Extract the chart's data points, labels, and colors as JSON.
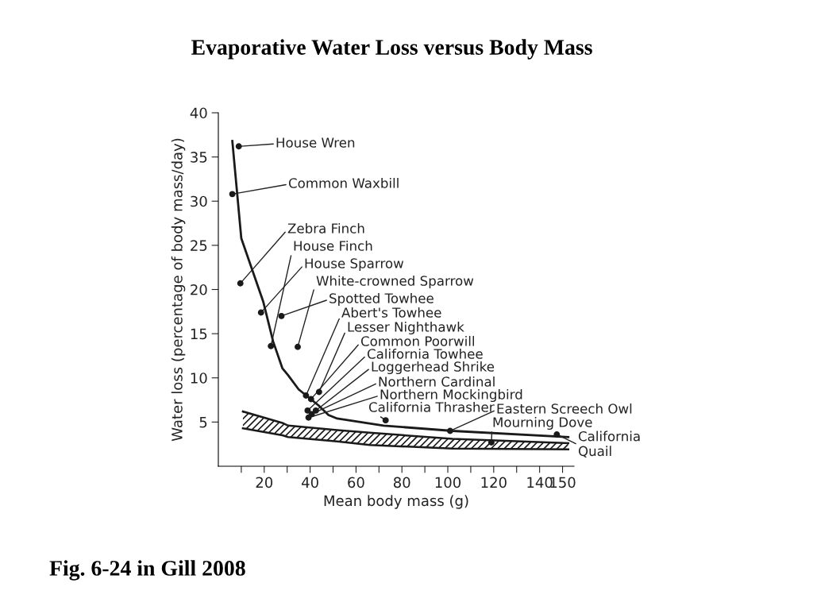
{
  "chart_data": {
    "type": "scatter",
    "title": "Evaporative Water Loss versus Body Mass",
    "xlabel": "Mean body mass (g)",
    "ylabel": "Water loss (percentage of body mass/day)",
    "xlim": [
      0,
      155
    ],
    "ylim": [
      0,
      40
    ],
    "stacked": true,
    "xticks": [
      {
        "value": 10,
        "label": null
      },
      20,
      {
        "value": 30,
        "label": null
      },
      40,
      {
        "value": 50,
        "label": null
      },
      60,
      {
        "value": 70,
        "label": null
      },
      80,
      {
        "value": 90,
        "label": null
      },
      100,
      {
        "value": 110,
        "label": null
      },
      120,
      {
        "value": 130,
        "label": null
      },
      140,
      150
    ],
    "yticks": [
      5,
      10,
      15,
      20,
      25,
      30,
      35,
      40
    ],
    "grid": false,
    "series": [
      {
        "color": "#1a1a1a",
        "marker": "circle",
        "x": [
          8.9,
          6.1,
          9.6,
          22.9,
          18.6,
          34.6,
          27.5,
          38.2,
          43.9,
          40.4,
          38.9,
          42.5,
          40.7,
          39.3,
          72.9,
          101,
          119,
          147.5
        ],
        "values": [
          36.2,
          30.8,
          20.7,
          13.6,
          17.4,
          13.5,
          17.0,
          8.0,
          8.4,
          7.6,
          6.3,
          6.3,
          5.9,
          5.5,
          5.2,
          4.0,
          2.7,
          3.6
        ]
      },
      {
        "type": "line",
        "color": "#1a1a1a",
        "line_style": "solid",
        "marker": "none",
        "x": [
          6.1,
          10,
          19.6,
          23.9,
          27.9,
          30.4,
          35,
          43.6,
          48,
          51.8,
          72,
          102,
          152.5
        ],
        "values": [
          36.8,
          25.8,
          18.6,
          14.1,
          11.1,
          10.3,
          8.7,
          6.9,
          5.8,
          5.4,
          4.6,
          4.0,
          3.3
        ]
      },
      {
        "type": "area",
        "color": "#1a1a1a",
        "x": [
          10.7,
          27.9,
          30.4,
          51.8,
          66,
          102,
          152.5
        ],
        "values": [
          4.3,
          3.5,
          3.3,
          2.8,
          2.4,
          2.0,
          1.9
        ]
      },
      {
        "type": "area",
        "color": "#1a1a1a",
        "x": [
          10.7,
          27.9,
          30.4,
          51.8,
          66,
          102,
          152.5
        ],
        "values": [
          1.9,
          1.4,
          1.3,
          1.3,
          1.4,
          1.1,
          0.7
        ]
      }
    ],
    "annotations": [
      {
        "text": "House Wren",
        "x": 8.9,
        "y": 36.2
      },
      {
        "text": "Common Waxbill",
        "x": 6.1,
        "y": 30.8
      },
      {
        "text": "Zebra Finch",
        "x": 9.6,
        "y": 20.7
      },
      {
        "text": "House Finch",
        "x": 22.9,
        "y": 13.6
      },
      {
        "text": "House Sparrow",
        "x": 18.6,
        "y": 17.4
      },
      {
        "text": "White-crowned Sparrow",
        "x": 34.6,
        "y": 13.5
      },
      {
        "text": "Spotted Towhee",
        "x": 27.5,
        "y": 17.0
      },
      {
        "text": "Abert's Towhee",
        "x": 38.2,
        "y": 8.0
      },
      {
        "text": "Lesser Nighthawk",
        "x": 43.9,
        "y": 8.4
      },
      {
        "text": "Common Poorwill",
        "x": 40.4,
        "y": 7.6
      },
      {
        "text": "California Towhee",
        "x": 38.9,
        "y": 6.3
      },
      {
        "text": "Loggerhead Shrike",
        "x": 42.5,
        "y": 6.3
      },
      {
        "text": "Northern Cardinal",
        "x": 40.7,
        "y": 5.9
      },
      {
        "text": "Northern Mockingbird",
        "x": 39.3,
        "y": 5.5
      },
      {
        "text": "California Thrasher",
        "x": 72.9,
        "y": 5.2
      },
      {
        "text": "Eastern Screech Owl",
        "x": 101,
        "y": 4.0
      },
      {
        "text": "Mourning Dove",
        "x": 119,
        "y": 2.7
      },
      {
        "text": "California\nQuail",
        "x": 147.5,
        "y": 3.6
      },
      "Fig. 6-24 in Gill 2008"
    ]
  }
}
